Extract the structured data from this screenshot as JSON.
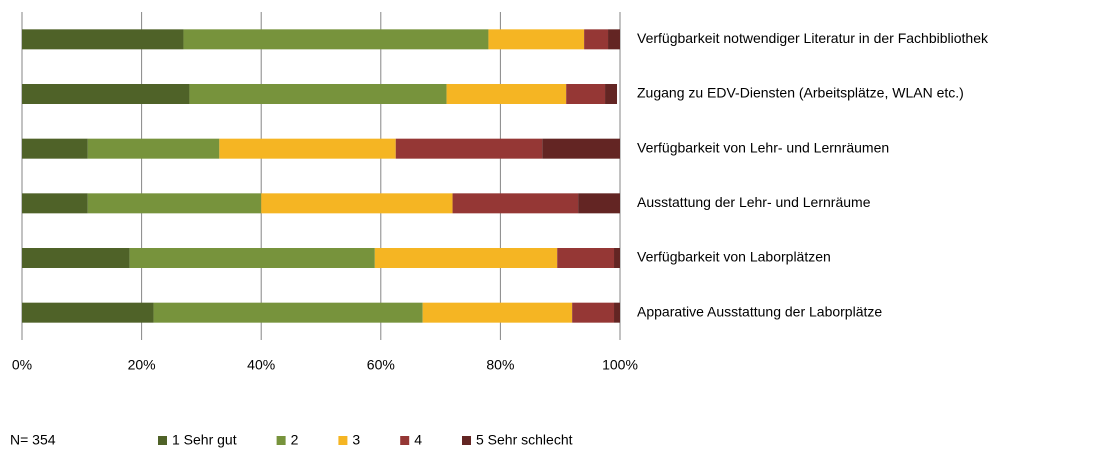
{
  "chart_data": {
    "type": "stacked_barh",
    "categories": [
      "Verfügbarkeit notwendiger Literatur in der Fachbibliothek",
      "Zugang zu EDV-Diensten (Arbeitsplätze, WLAN etc.)",
      "Verfügbarkeit von Lehr- und Lernräumen",
      "Ausstattung der Lehr- und Lernräume",
      "Verfügbarkeit von Laborplätzen",
      "Apparative Ausstattung der Laborplätze"
    ],
    "series": [
      {
        "name": "1 Sehr gut",
        "color": "#4f6228",
        "values": [
          27,
          28,
          11,
          11,
          18,
          22
        ]
      },
      {
        "name": "2",
        "color": "#77933c",
        "values": [
          51,
          43,
          22,
          29,
          41,
          45
        ]
      },
      {
        "name": "3",
        "color": "#f5b523",
        "values": [
          16,
          20,
          29.5,
          32,
          30.5,
          25
        ]
      },
      {
        "name": "4",
        "color": "#953735",
        "values": [
          4,
          6.5,
          24.5,
          21,
          9.5,
          7
        ]
      },
      {
        "name": "5 Sehr schlecht",
        "color": "#632523",
        "values": [
          2,
          2,
          13,
          7,
          1,
          1
        ]
      }
    ],
    "xlim": [
      0,
      100
    ],
    "xticks": [
      {
        "value": 0,
        "label": "0%"
      },
      {
        "value": 20,
        "label": "20%"
      },
      {
        "value": 40,
        "label": "40%"
      },
      {
        "value": 60,
        "label": "60%"
      },
      {
        "value": 80,
        "label": "80%"
      },
      {
        "value": 100,
        "label": "100%"
      }
    ],
    "grid": true,
    "note": "N= 354",
    "legend": "bottom"
  }
}
